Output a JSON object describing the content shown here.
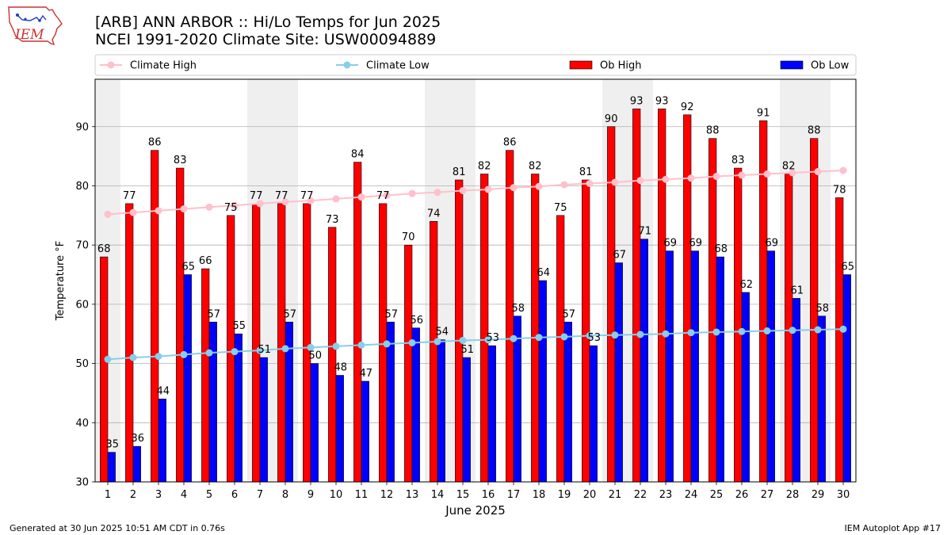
{
  "title_line1": "[ARB] ANN ARBOR :: Hi/Lo Temps for Jun 2025",
  "title_line2": "NCEI 1991-2020 Climate Site: USW00094889",
  "logo_text": "IEM",
  "footer_left": "Generated at 30 Jun 2025 10:51 AM CDT in 0.76s",
  "footer_right": "IEM Autoplot App #17",
  "colors": {
    "ob_high": "#ff0000",
    "ob_low": "#0000ff",
    "climate_high": "#ffc0cb",
    "climate_low": "#87ceeb",
    "weekend_shade": "#efefef",
    "grid": "#b0b0b0"
  },
  "chart_data": {
    "type": "bar",
    "title": "[ARB] ANN ARBOR :: Hi/Lo Temps for Jun 2025",
    "subtitle": "NCEI 1991-2020 Climate Site: USW00094889",
    "xlabel": "June 2025",
    "ylabel": "Temperature °F",
    "ylim": [
      30,
      98
    ],
    "yticks": [
      30,
      40,
      50,
      60,
      70,
      80,
      90
    ],
    "grid": true,
    "legend_position": "top",
    "categories": [
      "1",
      "2",
      "3",
      "4",
      "5",
      "6",
      "7",
      "8",
      "9",
      "10",
      "11",
      "12",
      "13",
      "14",
      "15",
      "16",
      "17",
      "18",
      "19",
      "20",
      "21",
      "22",
      "23",
      "24",
      "25",
      "26",
      "27",
      "28",
      "29",
      "30"
    ],
    "shaded_days": [
      "1",
      "7",
      "8",
      "14",
      "15",
      "21",
      "22",
      "28",
      "29"
    ],
    "series": [
      {
        "name": "Climate High",
        "kind": "line",
        "values": [
          75.2,
          75.5,
          75.8,
          76.1,
          76.4,
          76.7,
          77.0,
          77.3,
          77.5,
          77.8,
          78.1,
          78.4,
          78.7,
          78.9,
          79.2,
          79.4,
          79.7,
          79.9,
          80.2,
          80.4,
          80.6,
          80.9,
          81.1,
          81.3,
          81.6,
          81.8,
          82.0,
          82.2,
          82.4,
          82.6
        ]
      },
      {
        "name": "Climate Low",
        "kind": "line",
        "values": [
          50.7,
          51.0,
          51.2,
          51.5,
          51.8,
          52.0,
          52.2,
          52.5,
          52.7,
          52.9,
          53.1,
          53.3,
          53.5,
          53.7,
          53.9,
          54.0,
          54.2,
          54.4,
          54.5,
          54.7,
          54.8,
          54.9,
          55.0,
          55.2,
          55.3,
          55.4,
          55.5,
          55.6,
          55.7,
          55.8
        ]
      },
      {
        "name": "Ob High",
        "kind": "bar",
        "values": [
          68,
          77,
          86,
          83,
          66,
          75,
          77,
          77,
          77,
          73,
          84,
          77,
          70,
          74,
          81,
          82,
          86,
          82,
          75,
          81,
          90,
          93,
          93,
          92,
          88,
          83,
          91,
          82,
          88,
          78
        ]
      },
      {
        "name": "Ob Low",
        "kind": "bar",
        "values": [
          35,
          36,
          44,
          65,
          57,
          55,
          51,
          57,
          50,
          48,
          47,
          57,
          56,
          54,
          51,
          53,
          58,
          64,
          57,
          53,
          67,
          71,
          69,
          69,
          68,
          62,
          69,
          61,
          58,
          65
        ]
      }
    ]
  }
}
